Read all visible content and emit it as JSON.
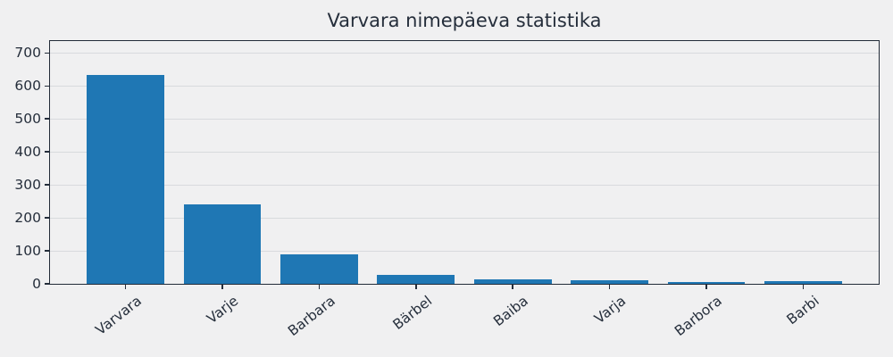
{
  "title": "Varvara nimepäeva statistika",
  "chart_data": {
    "type": "bar",
    "title": "Varvara nimepäeva statistika",
    "categories": [
      "Varvara",
      "Varje",
      "Barbara",
      "Bärbel",
      "Baiba",
      "Varja",
      "Barbora",
      "Barbi"
    ],
    "values": [
      633,
      241,
      88,
      27,
      14,
      12,
      5,
      7
    ],
    "xlabel": "",
    "ylabel": "",
    "ylim": [
      0,
      739
    ],
    "yticks": [
      0,
      100,
      200,
      300,
      400,
      500,
      600,
      700
    ],
    "grid": "horizontal",
    "legend": "none",
    "xtick_rotation_deg": 38,
    "colors": {
      "bar": "#1f77b4",
      "background": "#f0f0f1",
      "gridline": "#d8dadd",
      "axis_and_text": "#252e3b"
    }
  }
}
